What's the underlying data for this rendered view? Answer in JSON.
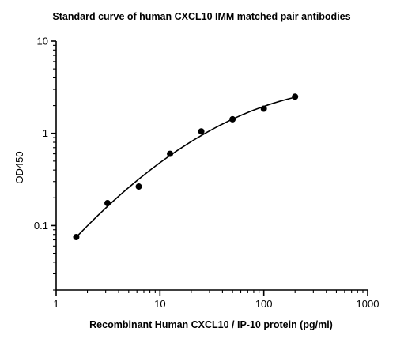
{
  "chart_data": {
    "type": "scatter",
    "title": "Standard curve of human CXCL10 IMM matched pair antibodies",
    "xlabel": "Recombinant Human CXCL10 / IP-10 protein (pg/ml)",
    "ylabel": "OD450",
    "x_scale": "log",
    "y_scale": "log",
    "xlim": [
      1,
      1000
    ],
    "ylim": [
      0.02,
      10
    ],
    "x_ticks": [
      1,
      10,
      100,
      1000
    ],
    "x_tick_labels": [
      "1",
      "10",
      "100",
      "1000"
    ],
    "y_ticks": [
      0.1,
      1,
      10
    ],
    "y_tick_labels": [
      "0.1",
      "1",
      "10"
    ],
    "grid": false,
    "legend": "none",
    "series": [
      {
        "x": [
          1.5625,
          3.125,
          6.25,
          12.5,
          25,
          50,
          100,
          200
        ],
        "y": [
          0.075,
          0.175,
          0.265,
          0.6,
          1.05,
          1.42,
          1.85,
          2.5
        ]
      }
    ]
  }
}
